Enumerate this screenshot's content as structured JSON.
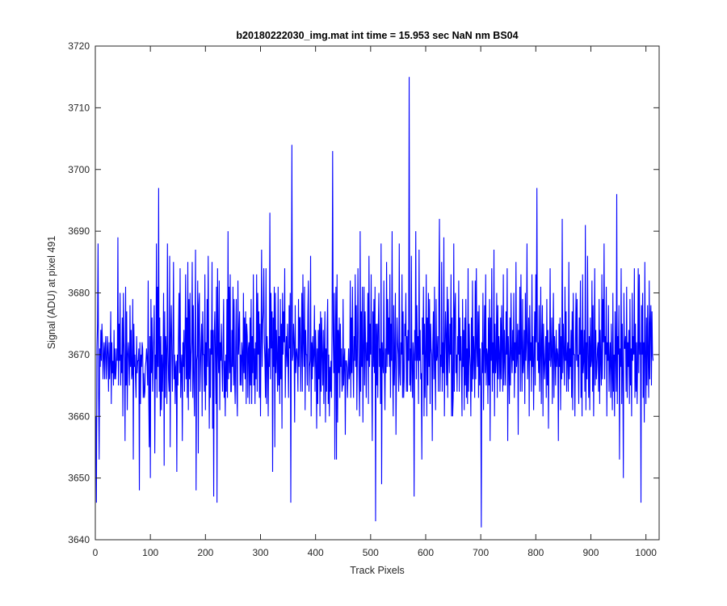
{
  "chart_data": {
    "type": "line",
    "title": "b20180222030_img.mat int time = 15.953 sec  NaN nm BS04",
    "xlabel": "Track Pixels",
    "ylabel": "Signal (ADU) at pixel 491",
    "xlim": [
      0,
      1024
    ],
    "ylim": [
      3640,
      3720
    ],
    "xticks": [
      0,
      100,
      200,
      300,
      400,
      500,
      600,
      700,
      800,
      900,
      1000
    ],
    "yticks": [
      3640,
      3650,
      3660,
      3670,
      3680,
      3690,
      3700,
      3710,
      3720
    ],
    "grid": false,
    "line_color": "#0000ff",
    "series": [
      {
        "x_start": 1,
        "x_step": 1,
        "values": [
          3660,
          3646,
          3671,
          3675,
          3688,
          3663,
          3653,
          3671,
          3668,
          3674,
          3669,
          3675,
          3672,
          3666,
          3670,
          3672,
          3666,
          3671,
          3673,
          3666,
          3669,
          3673,
          3670,
          3664,
          3672,
          3666,
          3669,
          3677,
          3662,
          3672,
          3667,
          3669,
          3665,
          3674,
          3666,
          3671,
          3666,
          3668,
          3671,
          3669,
          3689,
          3665,
          3675,
          3669,
          3680,
          3665,
          3670,
          3667,
          3676,
          3660,
          3680,
          3672,
          3669,
          3656,
          3681,
          3665,
          3677,
          3661,
          3670,
          3672,
          3669,
          3665,
          3678,
          3668,
          3674,
          3666,
          3667,
          3679,
          3653,
          3675,
          3668,
          3670,
          3666,
          3663,
          3673,
          3667,
          3669,
          3669,
          3671,
          3648,
          3672,
          3662,
          3670,
          3668,
          3672,
          3671,
          3663,
          3667,
          3663,
          3664,
          3668,
          3669,
          3671,
          3669,
          3665,
          3682,
          3663,
          3655,
          3673,
          3650,
          3679,
          3667,
          3676,
          3664,
          3670,
          3673,
          3678,
          3654,
          3670,
          3666,
          3688,
          3663,
          3681,
          3668,
          3697,
          3664,
          3676,
          3660,
          3673,
          3661,
          3670,
          3664,
          3669,
          3680,
          3652,
          3677,
          3663,
          3673,
          3670,
          3662,
          3688,
          3671,
          3666,
          3664,
          3686,
          3655,
          3673,
          3678,
          3670,
          3664,
          3672,
          3685,
          3666,
          3670,
          3662,
          3668,
          3669,
          3651,
          3670,
          3665,
          3673,
          3680,
          3667,
          3684,
          3663,
          3668,
          3670,
          3656,
          3672,
          3668,
          3674,
          3664,
          3672,
          3683,
          3666,
          3676,
          3663,
          3685,
          3661,
          3679,
          3666,
          3680,
          3664,
          3670,
          3672,
          3685,
          3663,
          3678,
          3666,
          3660,
          3673,
          3687,
          3648,
          3669,
          3670,
          3682,
          3654,
          3678,
          3680,
          3664,
          3668,
          3672,
          3675,
          3660,
          3677,
          3670,
          3670,
          3664,
          3683,
          3661,
          3672,
          3665,
          3679,
          3668,
          3686,
          3671,
          3658,
          3671,
          3663,
          3674,
          3670,
          3685,
          3658,
          3674,
          3647,
          3673,
          3677,
          3670,
          3662,
          3681,
          3646,
          3684,
          3671,
          3667,
          3682,
          3661,
          3672,
          3669,
          3675,
          3668,
          3664,
          3672,
          3679,
          3663,
          3669,
          3660,
          3670,
          3664,
          3679,
          3663,
          3690,
          3666,
          3681,
          3667,
          3683,
          3664,
          3664,
          3674,
          3668,
          3681,
          3665,
          3679,
          3666,
          3662,
          3672,
          3679,
          3664,
          3660,
          3682,
          3670,
          3673,
          3677,
          3665,
          3670,
          3665,
          3672,
          3670,
          3664,
          3680,
          3667,
          3676,
          3666,
          3677,
          3662,
          3675,
          3673,
          3663,
          3671,
          3672,
          3662,
          3676,
          3665,
          3679,
          3662,
          3673,
          3667,
          3683,
          3665,
          3671,
          3662,
          3672,
          3666,
          3683,
          3664,
          3680,
          3670,
          3677,
          3663,
          3675,
          3660,
          3672,
          3687,
          3668,
          3675,
          3677,
          3684,
          3672,
          3669,
          3663,
          3684,
          3662,
          3673,
          3670,
          3660,
          3671,
          3668,
          3693,
          3666,
          3680,
          3671,
          3677,
          3651,
          3676,
          3668,
          3681,
          3655,
          3680,
          3667,
          3674,
          3669,
          3664,
          3681,
          3665,
          3673,
          3662,
          3679,
          3666,
          3675,
          3658,
          3680,
          3670,
          3677,
          3672,
          3684,
          3663,
          3670,
          3673,
          3668,
          3675,
          3669,
          3663,
          3678,
          3671,
          3680,
          3646,
          3673,
          3704,
          3669,
          3670,
          3675,
          3672,
          3659,
          3678,
          3667,
          3670,
          3671,
          3669,
          3664,
          3679,
          3668,
          3676,
          3676,
          3664,
          3671,
          3680,
          3664,
          3683,
          3672,
          3668,
          3681,
          3661,
          3674,
          3670,
          3670,
          3665,
          3677,
          3682,
          3664,
          3668,
          3669,
          3686,
          3660,
          3672,
          3666,
          3673,
          3668,
          3670,
          3678,
          3664,
          3674,
          3670,
          3658,
          3671,
          3662,
          3674,
          3666,
          3675,
          3660,
          3677,
          3664,
          3676,
          3670,
          3665,
          3674,
          3662,
          3671,
          3677,
          3659,
          3671,
          3664,
          3674,
          3679,
          3662,
          3670,
          3660,
          3668,
          3664,
          3669,
          3663,
          3675,
          3703,
          3673,
          3667,
          3680,
          3653,
          3671,
          3681,
          3653,
          3683,
          3659,
          3674,
          3667,
          3676,
          3663,
          3675,
          3668,
          3671,
          3664,
          3665,
          3679,
          3665,
          3669,
          3671,
          3657,
          3669,
          3669,
          3668,
          3663,
          3667,
          3671,
          3666,
          3667,
          3682,
          3663,
          3676,
          3667,
          3681,
          3669,
          3663,
          3673,
          3669,
          3683,
          3668,
          3678,
          3661,
          3670,
          3684,
          3672,
          3665,
          3660,
          3690,
          3664,
          3677,
          3668,
          3681,
          3659,
          3671,
          3681,
          3665,
          3677,
          3671,
          3663,
          3672,
          3669,
          3680,
          3662,
          3686,
          3668,
          3675,
          3670,
          3683,
          3666,
          3656,
          3677,
          3668,
          3679,
          3667,
          3681,
          3643,
          3675,
          3665,
          3675,
          3663,
          3675,
          3680,
          3668,
          3671,
          3662,
          3688,
          3649,
          3672,
          3669,
          3667,
          3682,
          3668,
          3661,
          3671,
          3667,
          3685,
          3668,
          3679,
          3670,
          3676,
          3668,
          3683,
          3663,
          3675,
          3669,
          3690,
          3667,
          3660,
          3678,
          3665,
          3670,
          3680,
          3657,
          3667,
          3676,
          3672,
          3670,
          3664,
          3688,
          3667,
          3665,
          3672,
          3670,
          3683,
          3663,
          3677,
          3663,
          3666,
          3675,
          3673,
          3680,
          3664,
          3673,
          3664,
          3674,
          3669,
          3715,
          3665,
          3671,
          3664,
          3686,
          3668,
          3663,
          3672,
          3670,
          3647,
          3674,
          3669,
          3690,
          3666,
          3678,
          3669,
          3673,
          3662,
          3687,
          3669,
          3674,
          3666,
          3667,
          3653,
          3676,
          3670,
          3681,
          3660,
          3675,
          3663,
          3670,
          3683,
          3660,
          3676,
          3665,
          3680,
          3668,
          3679,
          3662,
          3675,
          3671,
          3670,
          3656,
          3672,
          3677,
          3666,
          3681,
          3668,
          3661,
          3679,
          3669,
          3670,
          3673,
          3664,
          3680,
          3692,
          3664,
          3670,
          3668,
          3685,
          3664,
          3672,
          3667,
          3689,
          3660,
          3670,
          3677,
          3673,
          3665,
          3681,
          3663,
          3679,
          3671,
          3667,
          3675,
          3670,
          3683,
          3660,
          3676,
          3660,
          3663,
          3688,
          3664,
          3677,
          3680,
          3667,
          3670,
          3664,
          3673,
          3670,
          3682,
          3664,
          3676,
          3669,
          3673,
          3667,
          3660,
          3679,
          3668,
          3674,
          3661,
          3676,
          3665,
          3679,
          3663,
          3671,
          3662,
          3684,
          3664,
          3675,
          3670,
          3668,
          3660,
          3676,
          3664,
          3682,
          3666,
          3673,
          3670,
          3663,
          3682,
          3666,
          3684,
          3671,
          3668,
          3677,
          3663,
          3678,
          3665,
          3671,
          3665,
          3642,
          3672,
          3667,
          3680,
          3661,
          3670,
          3678,
          3667,
          3683,
          3665,
          3671,
          3670,
          3662,
          3676,
          3665,
          3679,
          3656,
          3676,
          3669,
          3684,
          3664,
          3672,
          3667,
          3687,
          3660,
          3675,
          3667,
          3669,
          3680,
          3663,
          3678,
          3666,
          3673,
          3670,
          3664,
          3676,
          3666,
          3678,
          3671,
          3664,
          3683,
          3665,
          3674,
          3669,
          3665,
          3677,
          3670,
          3684,
          3656,
          3673,
          3669,
          3662,
          3676,
          3665,
          3680,
          3670,
          3667,
          3674,
          3669,
          3680,
          3663,
          3672,
          3667,
          3685,
          3668,
          3670,
          3675,
          3657,
          3674,
          3670,
          3681,
          3664,
          3683,
          3671,
          3664,
          3679,
          3667,
          3669,
          3674,
          3662,
          3680,
          3669,
          3672,
          3688,
          3666,
          3670,
          3676,
          3660,
          3678,
          3669,
          3672,
          3664,
          3683,
          3668,
          3673,
          3661,
          3670,
          3677,
          3665,
          3683,
          3672,
          3697,
          3669,
          3672,
          3667,
          3678,
          3664,
          3670,
          3681,
          3662,
          3672,
          3678,
          3660,
          3675,
          3669,
          3666,
          3670,
          3673,
          3663,
          3679,
          3665,
          3674,
          3658,
          3672,
          3669,
          3684,
          3668,
          3670,
          3676,
          3662,
          3671,
          3680,
          3663,
          3673,
          3670,
          3665,
          3674,
          3668,
          3671,
          3670,
          3656,
          3675,
          3668,
          3676,
          3661,
          3673,
          3666,
          3692,
          3667,
          3675,
          3670,
          3665,
          3681,
          3669,
          3677,
          3664,
          3670,
          3672,
          3664,
          3685,
          3666,
          3671,
          3668,
          3674,
          3663,
          3677,
          3661,
          3680,
          3670,
          3670,
          3660,
          3672,
          3680,
          3669,
          3679,
          3668,
          3670,
          3662,
          3676,
          3670,
          3682,
          3663,
          3674,
          3660,
          3683,
          3667,
          3669,
          3674,
          3664,
          3691,
          3661,
          3672,
          3666,
          3686,
          3670,
          3663,
          3673,
          3661,
          3676,
          3668,
          3669,
          3682,
          3664,
          3678,
          3660,
          3670,
          3684,
          3665,
          3674,
          3666,
          3668,
          3671,
          3672,
          3664,
          3679,
          3662,
          3674,
          3669,
          3665,
          3683,
          3666,
          3679,
          3672,
          3688,
          3666,
          3673,
          3670,
          3681,
          3660,
          3672,
          3669,
          3678,
          3664,
          3669,
          3672,
          3663,
          3675,
          3668,
          3661,
          3680,
          3664,
          3670,
          3660,
          3677,
          3670,
          3664,
          3696,
          3662,
          3673,
          3670,
          3678,
          3653,
          3671,
          3668,
          3684,
          3662,
          3675,
          3667,
          3650,
          3680,
          3671,
          3671,
          3673,
          3664,
          3681,
          3663,
          3672,
          3668,
          3674,
          3662,
          3679,
          3665,
          3671,
          3660,
          3680,
          3669,
          3673,
          3670,
          3684,
          3663,
          3675,
          3664,
          3672,
          3662,
          3669,
          3684,
          3667,
          3683,
          3670,
          3672,
          3646,
          3678,
          3670,
          3680,
          3663,
          3672,
          3659,
          3685,
          3670,
          3662,
          3676,
          3665,
          3678,
          3670,
          3663,
          3682,
          3666,
          3675,
          3678,
          3665,
          3677,
          3670,
          3669
        ]
      }
    ]
  }
}
